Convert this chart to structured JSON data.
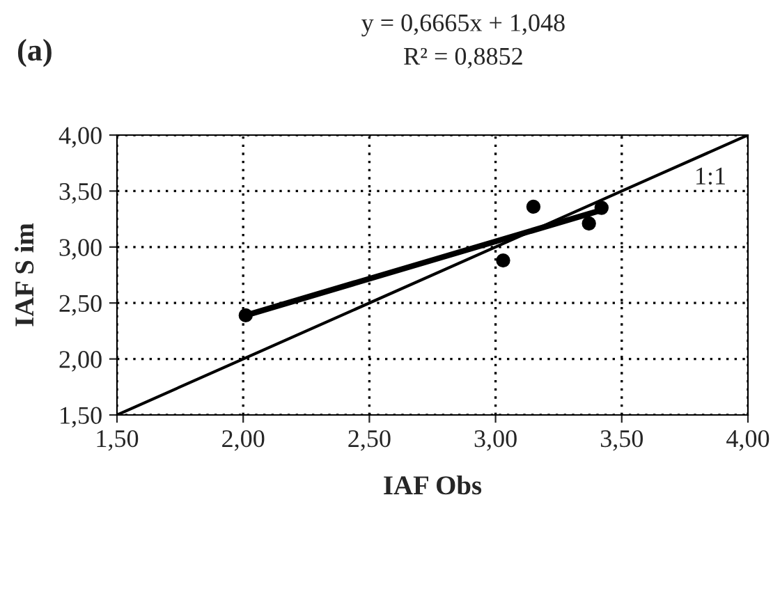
{
  "chart_data": {
    "type": "scatter",
    "title": "y = 0,6665x + 1,048",
    "subtitle": "R² = 0,8852",
    "xlabel": "IAF Obs",
    "ylabel": "IAF S im",
    "annotations": [
      "(a)",
      "1:1"
    ],
    "series": [
      {
        "color": "#000000",
        "marker": "circle",
        "x": [
          2.01,
          3.03,
          3.15,
          3.37,
          3.42
        ],
        "values": [
          2.39,
          2.88,
          3.36,
          3.21,
          3.35
        ]
      },
      {
        "type": "line",
        "color": "#000000",
        "marker": "none",
        "x": [
          2.01,
          3.42
        ],
        "values": [
          2.39,
          3.33
        ]
      },
      {
        "type": "line",
        "color": "#000000",
        "marker": "none",
        "x": [
          1.5,
          4.0
        ],
        "values": [
          1.5,
          4.0
        ]
      }
    ],
    "xlim": [
      1.5,
      4.0
    ],
    "ylim": [
      1.5,
      4.0
    ],
    "xticks": [
      {
        "value": 1.5,
        "label": "1,50"
      },
      {
        "value": 2.0,
        "label": "2,00"
      },
      {
        "value": 2.5,
        "label": "2,50"
      },
      {
        "value": 3.0,
        "label": "3,00"
      },
      {
        "value": 3.5,
        "label": "3,50"
      },
      {
        "value": 4.0,
        "label": "4,00"
      }
    ],
    "yticks": [
      {
        "value": 1.5,
        "label": "1,50"
      },
      {
        "value": 2.0,
        "label": "2,00"
      },
      {
        "value": 2.5,
        "label": "2,50"
      },
      {
        "value": 3.0,
        "label": "3,00"
      },
      {
        "value": 3.5,
        "label": "3,50"
      },
      {
        "value": 4.0,
        "label": "4,00"
      }
    ],
    "grid": true
  }
}
